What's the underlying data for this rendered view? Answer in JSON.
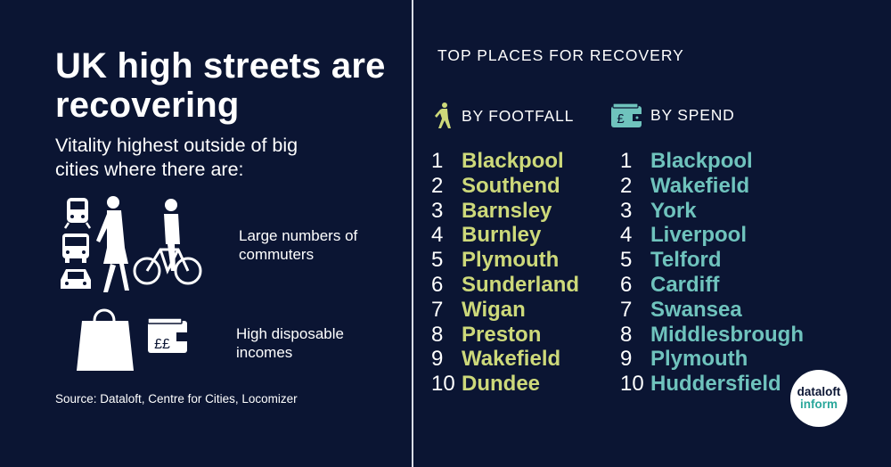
{
  "left": {
    "title": "UK high streets are recovering",
    "subtitle": "Vitality highest outside of big cities where there are:",
    "reasons": [
      "Large numbers of commuters",
      "High disposable incomes"
    ],
    "wallet_symbol": "££",
    "source": "Source: Dataloft, Centre for Cities, Locomizer"
  },
  "right": {
    "heading": "TOP PLACES FOR RECOVERY",
    "footfall": {
      "label": "BY FOOTFALL",
      "icon": "walking-person-icon",
      "ranks": [
        {
          "rank": "1",
          "city": "Blackpool"
        },
        {
          "rank": "2",
          "city": "Southend"
        },
        {
          "rank": "3",
          "city": "Barnsley"
        },
        {
          "rank": "4",
          "city": "Burnley"
        },
        {
          "rank": "5",
          "city": "Plymouth"
        },
        {
          "rank": "6",
          "city": "Sunderland"
        },
        {
          "rank": "7",
          "city": "Wigan"
        },
        {
          "rank": "8",
          "city": "Preston"
        },
        {
          "rank": "9",
          "city": "Wakefield"
        },
        {
          "rank": "10",
          "city": "Dundee"
        }
      ]
    },
    "spend": {
      "label": "BY SPEND",
      "icon": "wallet-icon",
      "icon_symbol": "£",
      "ranks": [
        {
          "rank": "1",
          "city": "Blackpool"
        },
        {
          "rank": "2",
          "city": "Wakefield"
        },
        {
          "rank": "3",
          "city": "York"
        },
        {
          "rank": "4",
          "city": "Liverpool"
        },
        {
          "rank": "5",
          "city": "Telford"
        },
        {
          "rank": "6",
          "city": "Cardiff"
        },
        {
          "rank": "7",
          "city": "Swansea"
        },
        {
          "rank": "8",
          "city": "Middlesbrough"
        },
        {
          "rank": "9",
          "city": "Plymouth"
        },
        {
          "rank": "10",
          "city": "Huddersfield"
        }
      ]
    }
  },
  "badge": {
    "line1": "dataloft",
    "line2": "inform"
  },
  "colors": {
    "background": "#0b1533",
    "footfall_accent": "#cdd97a",
    "spend_accent": "#6fc3bd",
    "badge_teal": "#2aa79b"
  }
}
